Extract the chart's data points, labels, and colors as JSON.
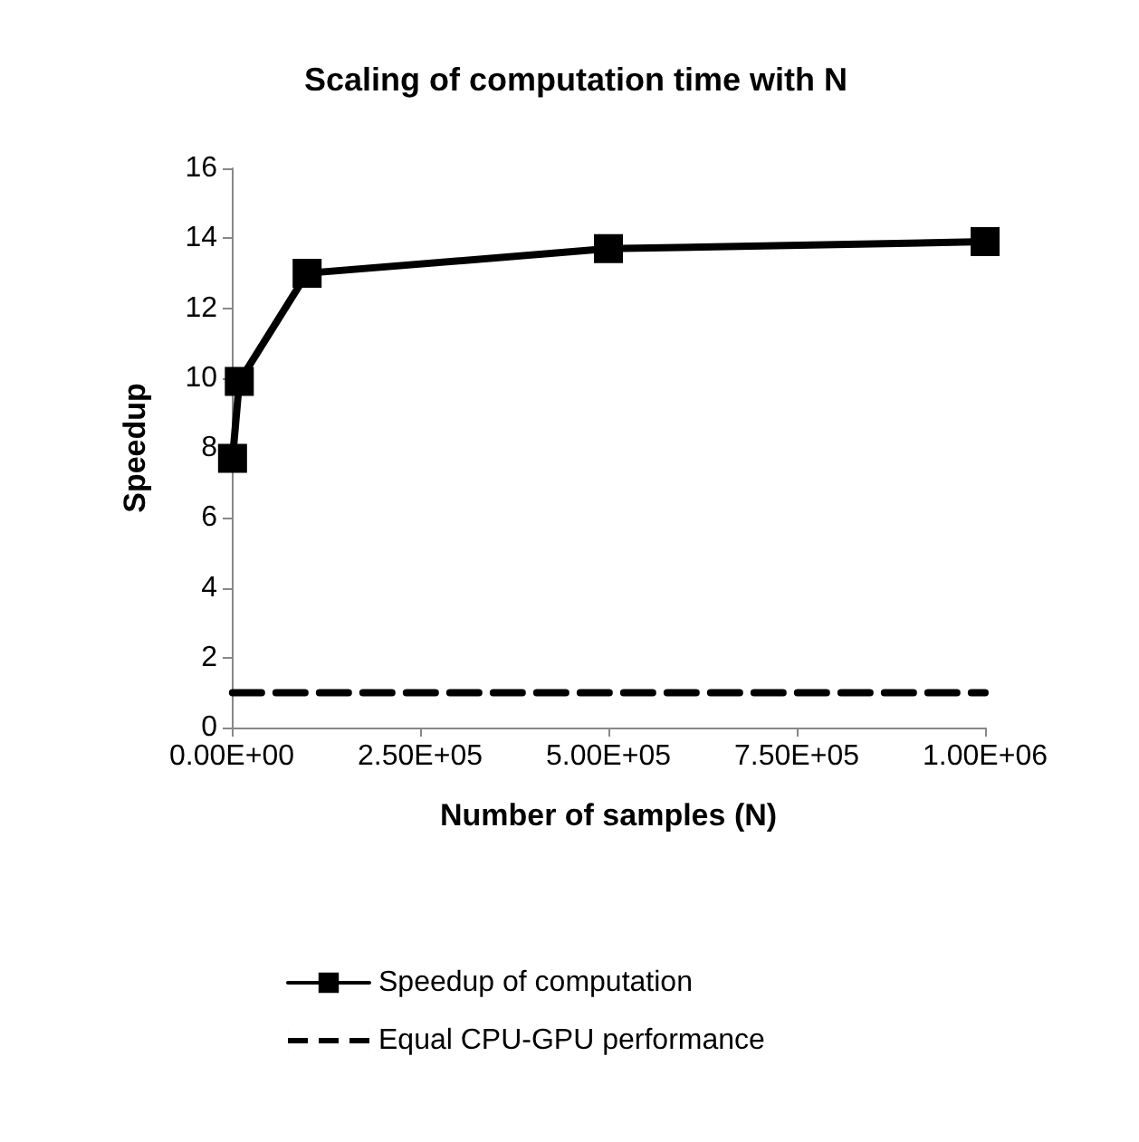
{
  "chart_data": {
    "type": "line",
    "title": "Scaling of computation time with N",
    "xlabel": "Number of samples (N)",
    "ylabel": "Speedup",
    "xlim": [
      0,
      1000000
    ],
    "xticks": [
      {
        "value": 0,
        "label": "0.00E+00"
      },
      {
        "value": 250000,
        "label": "2.50E+05"
      },
      {
        "value": 500000,
        "label": "5.00E+05"
      },
      {
        "value": 750000,
        "label": "7.50E+05"
      },
      {
        "value": 1000000,
        "label": "1.00E+06"
      }
    ],
    "ylim": [
      0,
      16
    ],
    "yticks": [
      0,
      2,
      4,
      6,
      8,
      10,
      12,
      14,
      16
    ],
    "grid": false,
    "legend": "bottom",
    "series": [
      {
        "name": "Speedup of computation",
        "color": "#000000",
        "x": [
          1000,
          10000,
          100000,
          500000,
          1000000
        ],
        "values": [
          7.7,
          9.9,
          13.0,
          13.7,
          13.9
        ],
        "marker": "square",
        "line_style": "solid"
      },
      {
        "name": "Equal CPU-GPU performance",
        "color": "#000000",
        "x": [
          1000,
          1000000
        ],
        "values": [
          1,
          1
        ],
        "marker": "none",
        "line_style": "dashed"
      }
    ]
  }
}
